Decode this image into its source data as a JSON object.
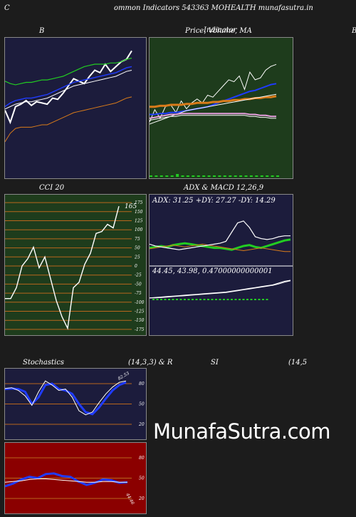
{
  "header": {
    "left_letter": "C",
    "title": "ommon  Indicators 543363 MOHEALTH munafasutra.in"
  },
  "watermark": "MunafaSutra.com",
  "panels": {
    "bollinger": {
      "title": "B"
    },
    "price": {
      "title_parts": [
        "Price,",
        "Volume,",
        "MA"
      ],
      "overlay_word": "Indicator"
    },
    "right_edge_letter": "B",
    "cci": {
      "title": "CCI 20",
      "last_value_label": "165"
    },
    "adx_macd": {
      "title": "ADX  & MACD 12,26,9",
      "adx_readout": "ADX: 31.25  +DY: 27.27  -DY: 14.29",
      "macd_readout": "44.45,  43.98,  0.47000000000001"
    },
    "stochastics": {
      "title": "Stochastics",
      "params": "(14,3,3) & R",
      "last_label": "82.53"
    },
    "rsi": {
      "title": "SI",
      "params": "(14,5",
      "last_label": "44.46"
    }
  },
  "colors": {
    "page_bg": "#1c1c1c",
    "bollinger_bg": "#1c1c3c",
    "price_bg": "#1e3c1c",
    "cci_bg": "#1e3c1c",
    "adx_bg": "#1c1c3c",
    "stoch_bg": "#1c1c3c",
    "rsi_bg": "#8b0000",
    "guide_orange": "#b8661c",
    "white": "#ffffff",
    "blue": "#1f3bff",
    "green": "#22cc22",
    "orange": "#d97b1a",
    "pink": "#e8a0e0"
  },
  "chart_data": [
    {
      "id": "bollinger",
      "type": "line",
      "title": "B",
      "ylim": [
        0,
        100
      ],
      "series": [
        {
          "color": "#ffffff",
          "values": [
            52,
            42,
            55,
            57,
            60,
            56,
            59,
            58,
            57,
            62,
            61,
            66,
            72,
            78,
            76,
            74,
            80,
            85,
            83,
            90,
            84,
            88,
            92,
            94,
            101
          ]
        },
        {
          "color": "#1f3bff",
          "values": [
            55,
            58,
            60,
            61,
            62,
            62,
            63,
            64,
            65,
            67,
            69,
            71,
            73,
            75,
            76,
            77,
            78,
            79,
            80,
            81,
            82,
            83,
            85,
            87,
            88
          ]
        },
        {
          "color": "#ffffff",
          "values": [
            53,
            55,
            57,
            58,
            59,
            59,
            60,
            61,
            62,
            64,
            66,
            68,
            70,
            72,
            73,
            74,
            75,
            76,
            77,
            78,
            79,
            80,
            82,
            84,
            85
          ]
        },
        {
          "color": "#22cc22",
          "values": [
            76,
            74,
            73,
            74,
            75,
            75,
            76,
            77,
            77,
            78,
            79,
            80,
            82,
            84,
            86,
            88,
            89,
            90,
            90,
            90,
            91,
            91,
            92,
            94,
            95
          ]
        },
        {
          "color": "#d97b1a",
          "values": [
            26,
            33,
            37,
            38,
            38,
            38,
            39,
            40,
            40,
            42,
            44,
            46,
            48,
            50,
            51,
            52,
            53,
            54,
            55,
            56,
            57,
            58,
            60,
            62,
            63
          ]
        }
      ]
    },
    {
      "id": "price_volume_ma",
      "type": "line",
      "title": "Price, Volume, MA",
      "ylim": [
        0,
        100
      ],
      "series": [
        {
          "color": "#ffffff",
          "values": [
            42,
            55,
            46,
            58,
            60,
            52,
            64,
            56,
            62,
            66,
            62,
            70,
            68,
            74,
            80,
            86,
            84,
            90,
            76,
            94,
            86,
            88,
            96,
            100,
            102
          ]
        },
        {
          "color": "#1f3bff",
          "values": [
            50,
            50,
            51,
            51,
            52,
            52,
            53,
            54,
            55,
            56,
            57,
            58,
            60,
            62,
            64,
            66,
            68,
            70,
            72,
            74,
            75,
            77,
            79,
            81,
            82
          ]
        },
        {
          "color": "#d97b1a",
          "values": [
            58,
            58,
            59,
            59,
            60,
            60,
            60,
            61,
            61,
            62,
            62,
            62,
            63,
            63,
            64,
            64,
            65,
            65,
            66,
            66,
            67,
            67,
            68,
            68,
            69
          ]
        },
        {
          "color": "#ffffff",
          "values": [
            40,
            42,
            44,
            46,
            48,
            50,
            52,
            54,
            55,
            56,
            57,
            58,
            59,
            60,
            61,
            62,
            63,
            64,
            65,
            66,
            67,
            68,
            69,
            70,
            71
          ]
        },
        {
          "color": "#e8a0e0",
          "values": [
            46,
            47,
            48,
            49,
            50,
            50,
            51,
            51,
            51,
            51,
            51,
            51,
            51,
            51,
            51,
            51,
            51,
            51,
            51,
            50,
            50,
            49,
            49,
            48,
            48
          ]
        },
        {
          "color": "#ffffff",
          "values": [
            44,
            45,
            46,
            47,
            48,
            48,
            49,
            49,
            49,
            49,
            49,
            49,
            49,
            49,
            49,
            49,
            49,
            49,
            49,
            48,
            48,
            47,
            47,
            46,
            46
          ]
        }
      ],
      "volume": [
        1,
        1,
        1,
        1,
        1,
        2,
        1,
        1,
        1,
        1,
        1,
        1,
        1,
        1,
        1,
        1,
        1,
        1,
        1,
        1,
        1,
        1,
        1,
        1,
        1
      ]
    },
    {
      "id": "cci",
      "type": "line",
      "title": "CCI 20",
      "ylim": [
        -185,
        185
      ],
      "ticks": [
        175,
        150,
        125,
        100,
        75,
        50,
        25,
        0,
        -25,
        -50,
        -75,
        -100,
        -125,
        -150,
        -175
      ],
      "series": [
        {
          "color": "#ffffff",
          "values": [
            -90,
            -90,
            -60,
            0,
            20,
            52,
            -5,
            25,
            -35,
            -95,
            -140,
            -172,
            -60,
            -45,
            5,
            35,
            90,
            95,
            115,
            105,
            165
          ]
        }
      ]
    },
    {
      "id": "adx",
      "type": "line",
      "title": "ADX & MACD 12,26,9",
      "ylim": [
        0,
        60
      ],
      "series": [
        {
          "name": "+DY",
          "color": "#22cc22",
          "values": [
            18,
            19,
            20,
            19,
            21,
            22,
            23,
            22,
            21,
            20,
            19,
            18,
            18,
            17,
            16,
            18,
            20,
            21,
            19,
            18,
            20,
            22,
            24,
            26,
            27
          ]
        },
        {
          "name": "-DY",
          "color": "#d97b1a",
          "values": [
            17,
            18,
            19,
            20,
            21,
            20,
            19,
            20,
            21,
            22,
            21,
            20,
            19,
            18,
            17,
            16,
            15,
            16,
            17,
            18,
            17,
            16,
            15,
            14,
            14
          ]
        },
        {
          "name": "ADX",
          "color": "#ffffff",
          "values": [
            22,
            20,
            19,
            18,
            17,
            16,
            17,
            18,
            19,
            20,
            21,
            22,
            23,
            25,
            35,
            45,
            47,
            40,
            30,
            28,
            27,
            28,
            30,
            31,
            31
          ]
        }
      ]
    },
    {
      "id": "macd",
      "type": "line",
      "ylim": [
        0,
        60
      ],
      "series": [
        {
          "color": "#ffffff",
          "values": [
            5,
            6,
            7,
            8,
            9,
            10,
            11,
            12,
            13,
            14,
            15,
            16,
            17,
            18,
            20,
            22,
            24,
            26,
            28,
            30,
            32,
            34,
            38,
            42,
            44
          ]
        },
        {
          "color": "#ffffff",
          "values": [
            5,
            5,
            6,
            7,
            8,
            9,
            10,
            11,
            12,
            13,
            14,
            15,
            16,
            17,
            19,
            21,
            23,
            25,
            27,
            29,
            31,
            33,
            36,
            40,
            43
          ]
        }
      ]
    },
    {
      "id": "stochastics",
      "type": "line",
      "title": "Stochastics (14,3,3)",
      "ylim": [
        0,
        100
      ],
      "ticks": [
        80,
        50,
        20
      ],
      "series": [
        {
          "color": "#1f3bff",
          "values": [
            72,
            73,
            72,
            68,
            50,
            60,
            78,
            80,
            72,
            70,
            65,
            50,
            38,
            35,
            45,
            58,
            70,
            78,
            82
          ]
        },
        {
          "color": "#ffffff",
          "values": [
            73,
            74,
            70,
            62,
            48,
            68,
            84,
            78,
            70,
            72,
            60,
            40,
            34,
            38,
            52,
            65,
            75,
            82,
            84
          ]
        }
      ]
    },
    {
      "id": "rsi",
      "type": "line",
      "title": "SI (14,5",
      "ylim": [
        0,
        100
      ],
      "ticks": [
        80,
        50,
        20
      ],
      "series": [
        {
          "color": "#1f3bff",
          "values": [
            38,
            42,
            48,
            52,
            50,
            56,
            57,
            53,
            52,
            45,
            40,
            43,
            48,
            47,
            43,
            44
          ]
        },
        {
          "color": "#ffffff",
          "values": [
            44,
            45,
            46,
            48,
            49,
            49,
            48,
            47,
            46,
            45,
            44,
            44,
            45,
            45,
            44,
            44
          ]
        }
      ]
    }
  ]
}
